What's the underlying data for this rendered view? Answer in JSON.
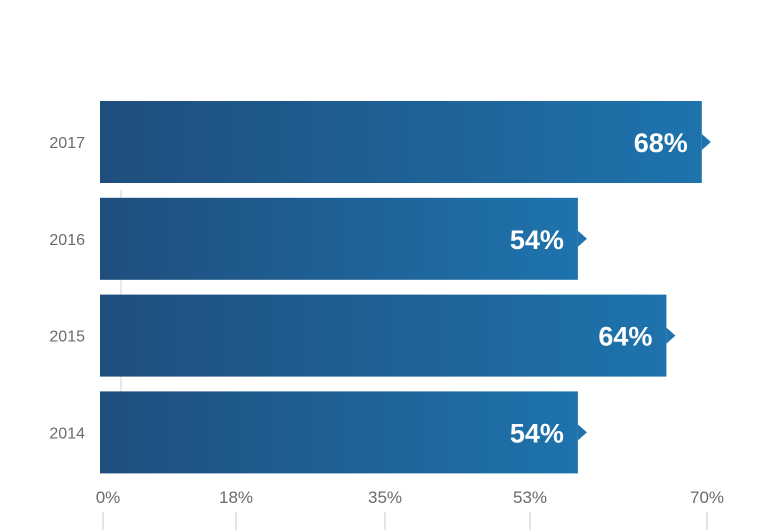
{
  "chart_data": {
    "type": "bar",
    "orientation": "horizontal",
    "title": "",
    "xlabel": "",
    "ylabel": "",
    "categories": [
      "2017",
      "2016",
      "2015",
      "2014"
    ],
    "values": [
      68,
      54,
      64,
      54
    ],
    "value_labels": [
      "68%",
      "54%",
      "64%",
      "54%"
    ],
    "x_ticks": [
      0,
      18,
      35,
      53,
      70
    ],
    "x_tick_labels": [
      "0%",
      "18%",
      "35%",
      "53%",
      "70%"
    ],
    "xlim": [
      0,
      70
    ],
    "grid": false,
    "legend": "none",
    "colors": {
      "bar_start": "#1f4e7d",
      "bar_end": "#1e73ad",
      "text": "#6b6b6b"
    }
  }
}
